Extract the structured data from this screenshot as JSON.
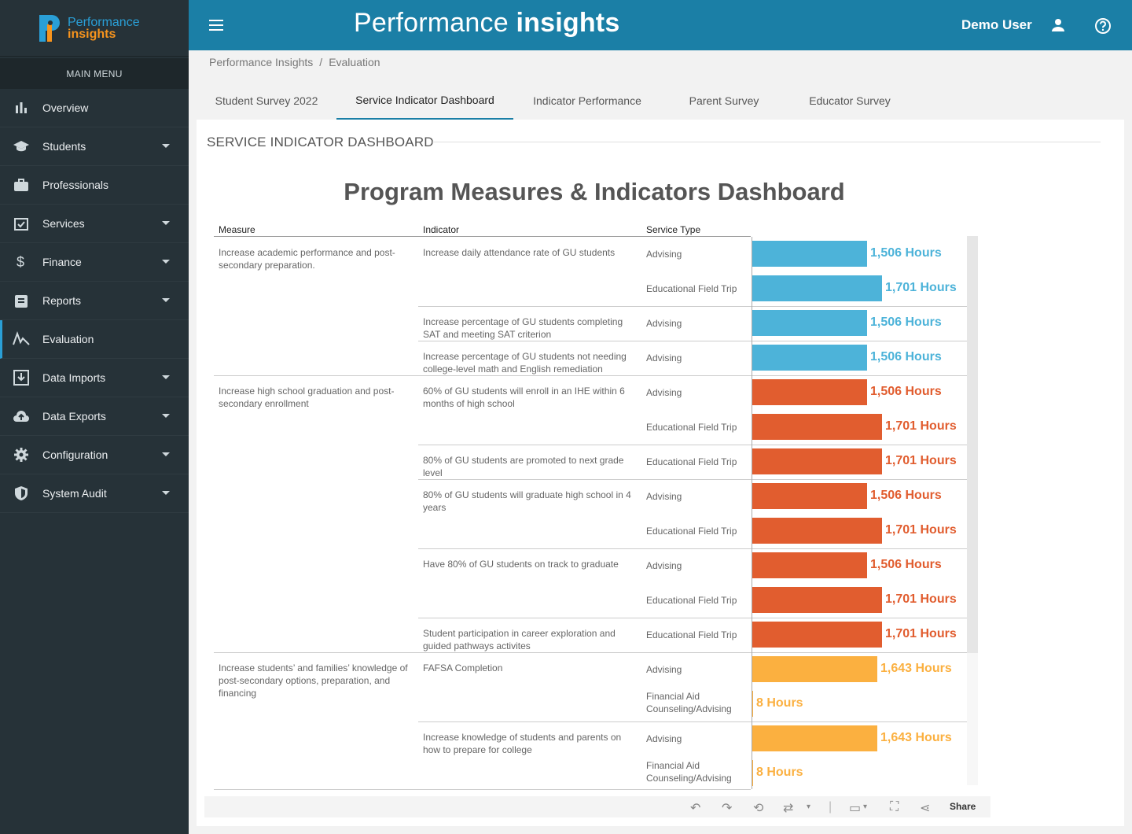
{
  "logo": {
    "line1": "Performance",
    "line2": "insights"
  },
  "sidebar": {
    "header": "MAIN MENU",
    "items": [
      {
        "label": "Overview",
        "icon": "bar-chart-icon",
        "caret": false
      },
      {
        "label": "Students",
        "icon": "graduation-cap-icon",
        "caret": true
      },
      {
        "label": "Professionals",
        "icon": "briefcase-icon",
        "caret": false
      },
      {
        "label": "Services",
        "icon": "calendar-check-icon",
        "caret": true
      },
      {
        "label": "Finance",
        "icon": "dollar-icon",
        "caret": true
      },
      {
        "label": "Reports",
        "icon": "clipboard-icon",
        "caret": true
      },
      {
        "label": "Evaluation",
        "icon": "evaluation-icon",
        "caret": false,
        "active": true
      },
      {
        "label": "Data Imports",
        "icon": "import-icon",
        "caret": true
      },
      {
        "label": "Data Exports",
        "icon": "cloud-upload-icon",
        "caret": true
      },
      {
        "label": "Configuration",
        "icon": "gear-icon",
        "caret": true
      },
      {
        "label": "System Audit",
        "icon": "shield-icon",
        "caret": true
      }
    ]
  },
  "header": {
    "title_light": "Performance",
    "title_bold": "insights",
    "user": "Demo User"
  },
  "breadcrumb": {
    "root": "Performance Insights",
    "sep": "/",
    "current": "Evaluation"
  },
  "tabs": [
    {
      "label": "Student Survey 2022"
    },
    {
      "label": "Service Indicator Dashboard",
      "active": true
    },
    {
      "label": "Indicator Performance"
    },
    {
      "label": "Parent Survey"
    },
    {
      "label": "Educator Survey"
    }
  ],
  "section_title": "SERVICE INDICATOR DASHBOARD",
  "dashboard": {
    "title": "Program Measures & Indicators Dashboard",
    "columns": {
      "measure": "Measure",
      "indicator": "Indicator",
      "service_type": "Service Type"
    },
    "measures": [
      {
        "label": "Increase academic performance and post-secondary preparation."
      },
      {
        "label": "Increase high school graduation and post-secondary enrollment"
      },
      {
        "label": "Increase students’ and families’ knowledge of post-secondary options, preparation, and financing"
      }
    ],
    "indicators": [
      {
        "label": "Increase daily attendance rate of GU students"
      },
      {
        "label": "Increase percentage of GU students completing SAT and meeting SAT criterion"
      },
      {
        "label": "Increase percentage of GU students not needing college-level math and English remediation"
      },
      {
        "label": "60% of GU students will enroll in an IHE within 6 months of high school"
      },
      {
        "label": "80% of GU students are promoted to next grade level"
      },
      {
        "label": "80% of GU students will graduate high school in 4 years"
      },
      {
        "label": "Have 80% of GU students on track to graduate"
      },
      {
        "label": "Student participation in career exploration and guided pathways activites"
      },
      {
        "label": "FAFSA Completion"
      },
      {
        "label": "Increase knowledge of students and parents on how to prepare for college"
      }
    ],
    "rows": [
      {
        "service": "Advising",
        "hours": 1506,
        "label": "1,506 Hours",
        "group": 0
      },
      {
        "service": "Educational Field Trip",
        "hours": 1701,
        "label": "1,701 Hours",
        "group": 0
      },
      {
        "service": "Advising",
        "hours": 1506,
        "label": "1,506 Hours",
        "group": 0
      },
      {
        "service": "Advising",
        "hours": 1506,
        "label": "1,506 Hours",
        "group": 0
      },
      {
        "service": "Advising",
        "hours": 1506,
        "label": "1,506 Hours",
        "group": 1
      },
      {
        "service": "Educational Field Trip",
        "hours": 1701,
        "label": "1,701 Hours",
        "group": 1
      },
      {
        "service": "Educational Field Trip",
        "hours": 1701,
        "label": "1,701 Hours",
        "group": 1
      },
      {
        "service": "Advising",
        "hours": 1506,
        "label": "1,506 Hours",
        "group": 1
      },
      {
        "service": "Educational Field Trip",
        "hours": 1701,
        "label": "1,701 Hours",
        "group": 1
      },
      {
        "service": "Advising",
        "hours": 1506,
        "label": "1,506 Hours",
        "group": 1
      },
      {
        "service": "Educational Field Trip",
        "hours": 1701,
        "label": "1,701 Hours",
        "group": 1
      },
      {
        "service": "Educational Field Trip",
        "hours": 1701,
        "label": "1,701 Hours",
        "group": 1
      },
      {
        "service": "Advising",
        "hours": 1643,
        "label": "1,643 Hours",
        "group": 2
      },
      {
        "service": "Financial Aid Counseling/Advising",
        "hours": 8,
        "label": "8 Hours",
        "group": 2
      },
      {
        "service": "Advising",
        "hours": 1643,
        "label": "1,643 Hours",
        "group": 2
      },
      {
        "service": "Financial Aid Counseling/Advising",
        "hours": 8,
        "label": "8 Hours",
        "group": 2
      }
    ],
    "group_colors": [
      "#4db3d9",
      "#e15d2f",
      "#fbb040"
    ],
    "label_colors": [
      "#4db3d9",
      "#e15d2f",
      "#fbb040"
    ],
    "max_hours": 1701
  },
  "toolbar": {
    "share_label": "Share"
  }
}
